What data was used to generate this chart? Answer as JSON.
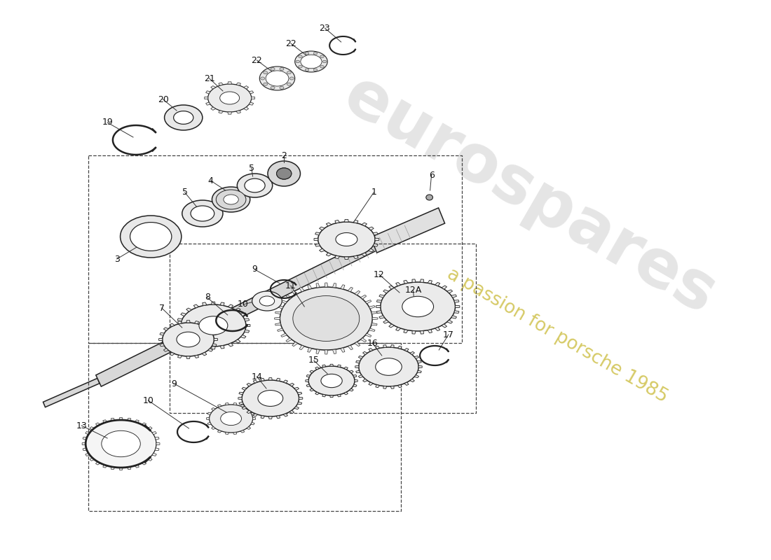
{
  "background_color": "#ffffff",
  "line_color": "#222222",
  "watermark_text1": "eurospares",
  "watermark_text2": "a passion for porsche 1985",
  "watermark_color1": "#d0d0d0",
  "watermark_color2": "#c8b832",
  "figsize": [
    11.0,
    8.0
  ],
  "dpi": 100,
  "label_fontsize": 9,
  "label_color": "#111111"
}
